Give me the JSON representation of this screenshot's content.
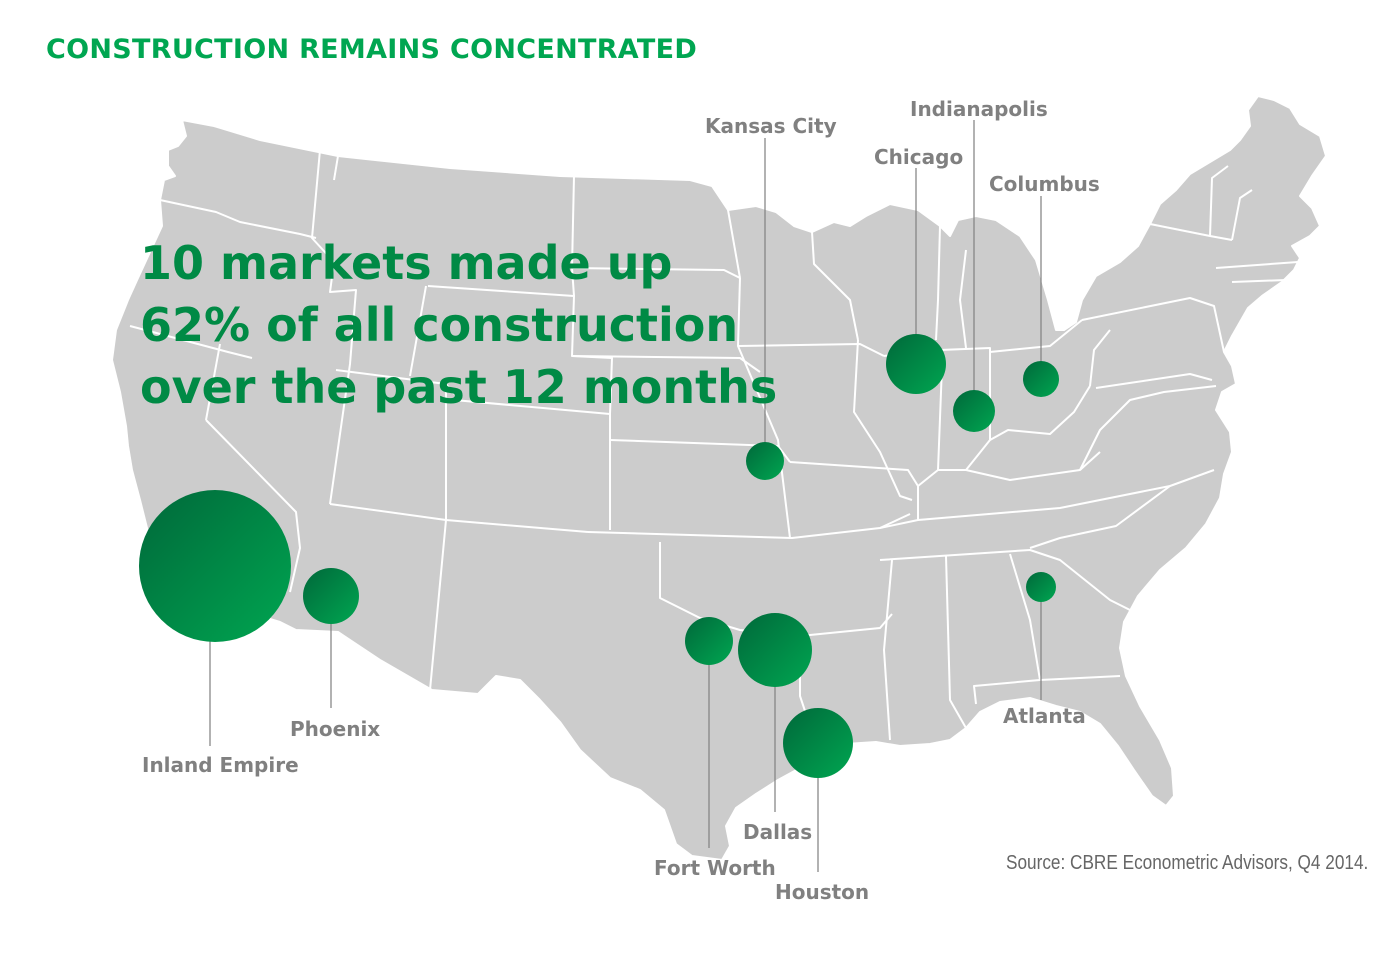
{
  "title": "CONSTRUCTION REMAINS CONCENTRATED",
  "headline": {
    "line1": "10 markets made up",
    "line2": "62% of all construction",
    "line3": "over the past 12 months"
  },
  "source": "Source: CBRE Econometric Advisors, Q4 2014.",
  "colors": {
    "land": "#cccccc",
    "borders": "#ffffff",
    "bubble_dark": "#00733b",
    "bubble_light": "#00a651",
    "title": "#00a651",
    "labels": "#808080"
  },
  "markets": [
    {
      "id": "inland-empire",
      "name": "Inland Empire",
      "relative_size": 1.0
    },
    {
      "id": "phoenix",
      "name": "Phoenix",
      "relative_size": 0.36
    },
    {
      "id": "fort-worth",
      "name": "Fort Worth",
      "relative_size": 0.32
    },
    {
      "id": "dallas",
      "name": "Dallas",
      "relative_size": 0.49
    },
    {
      "id": "houston",
      "name": "Houston",
      "relative_size": 0.46
    },
    {
      "id": "kansas-city",
      "name": "Kansas City",
      "relative_size": 0.25
    },
    {
      "id": "chicago",
      "name": "Chicago",
      "relative_size": 0.4
    },
    {
      "id": "indianapolis",
      "name": "Indianapolis",
      "relative_size": 0.28
    },
    {
      "id": "columbus",
      "name": "Columbus",
      "relative_size": 0.24
    },
    {
      "id": "atlanta",
      "name": "Atlanta",
      "relative_size": 0.2
    }
  ]
}
